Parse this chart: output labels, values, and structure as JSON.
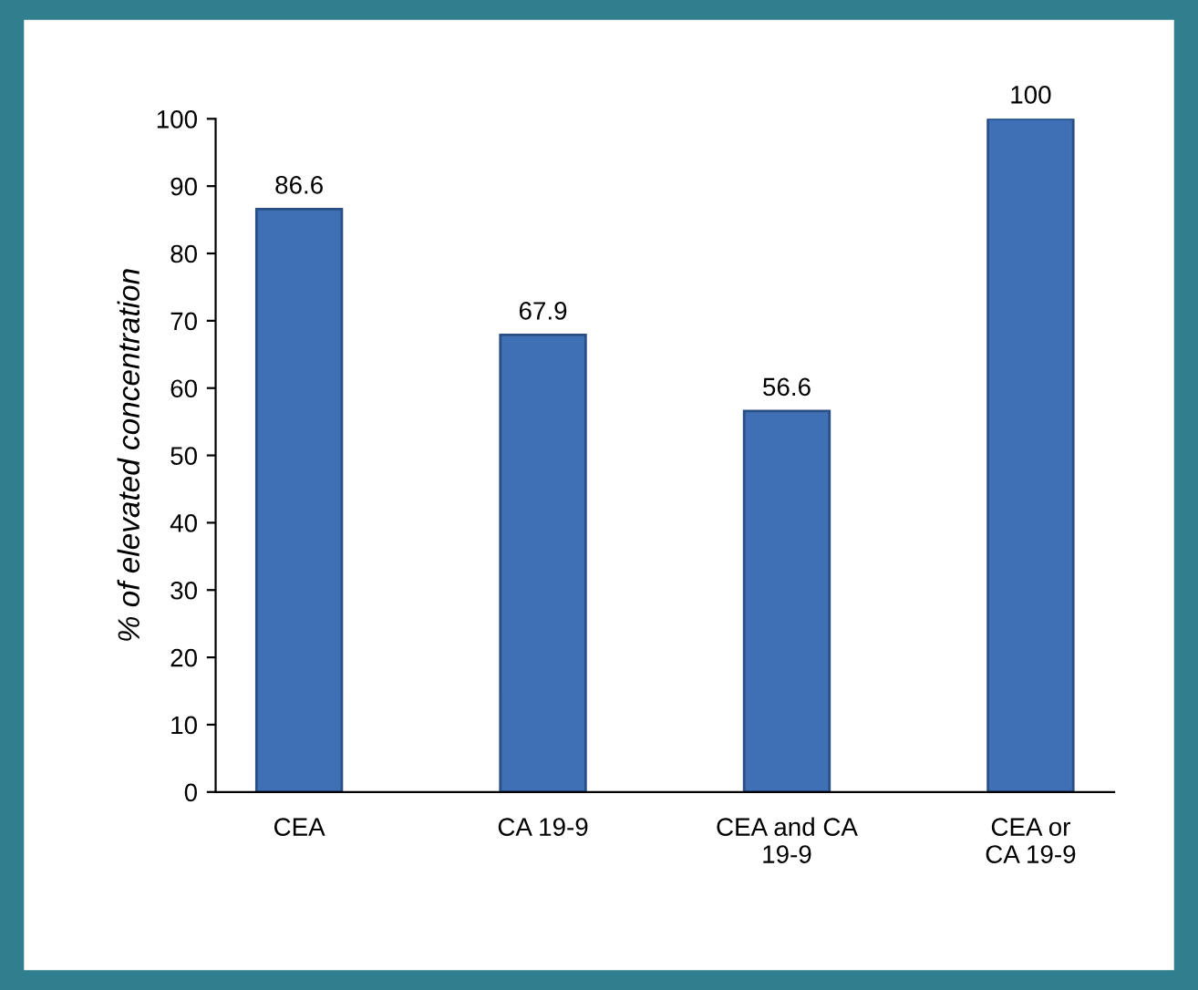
{
  "chart_data": {
    "type": "bar",
    "ylabel": "% of elevated concentration",
    "categories": [
      "CEA",
      "CA 19-9",
      "CEA and CA\n19-9",
      "CEA or\nCA 19-9"
    ],
    "values": [
      86.6,
      67.9,
      56.6,
      100
    ],
    "color": "#3f6fb5",
    "ylim": [
      0,
      100
    ],
    "yticks": [
      0,
      10,
      20,
      30,
      40,
      50,
      60,
      70,
      80,
      90,
      100
    ],
    "data_labels": true,
    "grid": false,
    "legend": false
  }
}
